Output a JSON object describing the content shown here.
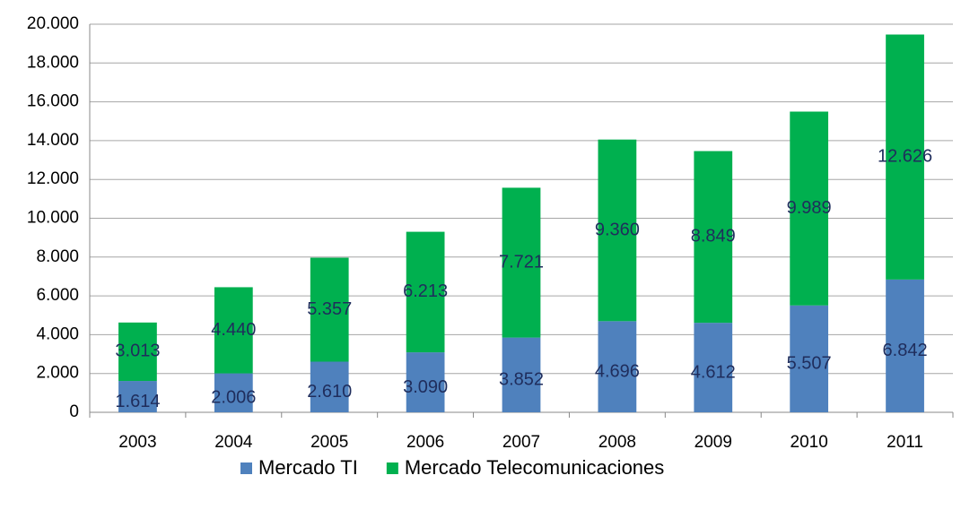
{
  "chart_data": {
    "type": "stacked_bar",
    "categories": [
      "2003",
      "2004",
      "2005",
      "2006",
      "2007",
      "2008",
      "2009",
      "2010",
      "2011"
    ],
    "series": [
      {
        "name": "Mercado TI",
        "color": "#4f81bd",
        "values": [
          1614,
          2006,
          2610,
          3090,
          3852,
          4696,
          4612,
          5507,
          6842
        ],
        "value_labels": [
          "1.614",
          "2.006",
          "2.610",
          "3.090",
          "3.852",
          "4.696",
          "4.612",
          "5.507",
          "6.842"
        ]
      },
      {
        "name": "Mercado Telecomunicaciones",
        "color": "#00b04f",
        "values": [
          3013,
          4440,
          5357,
          6213,
          7721,
          9360,
          8849,
          9989,
          12626
        ],
        "value_labels": [
          "3.013",
          "4.440",
          "5.357",
          "6.213",
          "7.721",
          "9.360",
          "8.849",
          "9.989",
          "12.626"
        ]
      }
    ],
    "ylim": [
      0,
      20000
    ],
    "yticks": [
      0,
      {
        "value": 2000,
        "label": "2.000"
      },
      {
        "value": 4000,
        "label": "4.000"
      },
      {
        "value": 6000,
        "label": "6.000"
      },
      {
        "value": 8000,
        "label": "8.000"
      },
      {
        "value": 10000,
        "label": "10.000"
      },
      {
        "value": 12000,
        "label": "12.000"
      },
      {
        "value": 14000,
        "label": "14.000"
      },
      {
        "value": 16000,
        "label": "16.000"
      },
      {
        "value": 18000,
        "label": "18.000"
      },
      {
        "value": 20000,
        "label": "20.000"
      }
    ],
    "grid": true,
    "legend": "bottom"
  }
}
